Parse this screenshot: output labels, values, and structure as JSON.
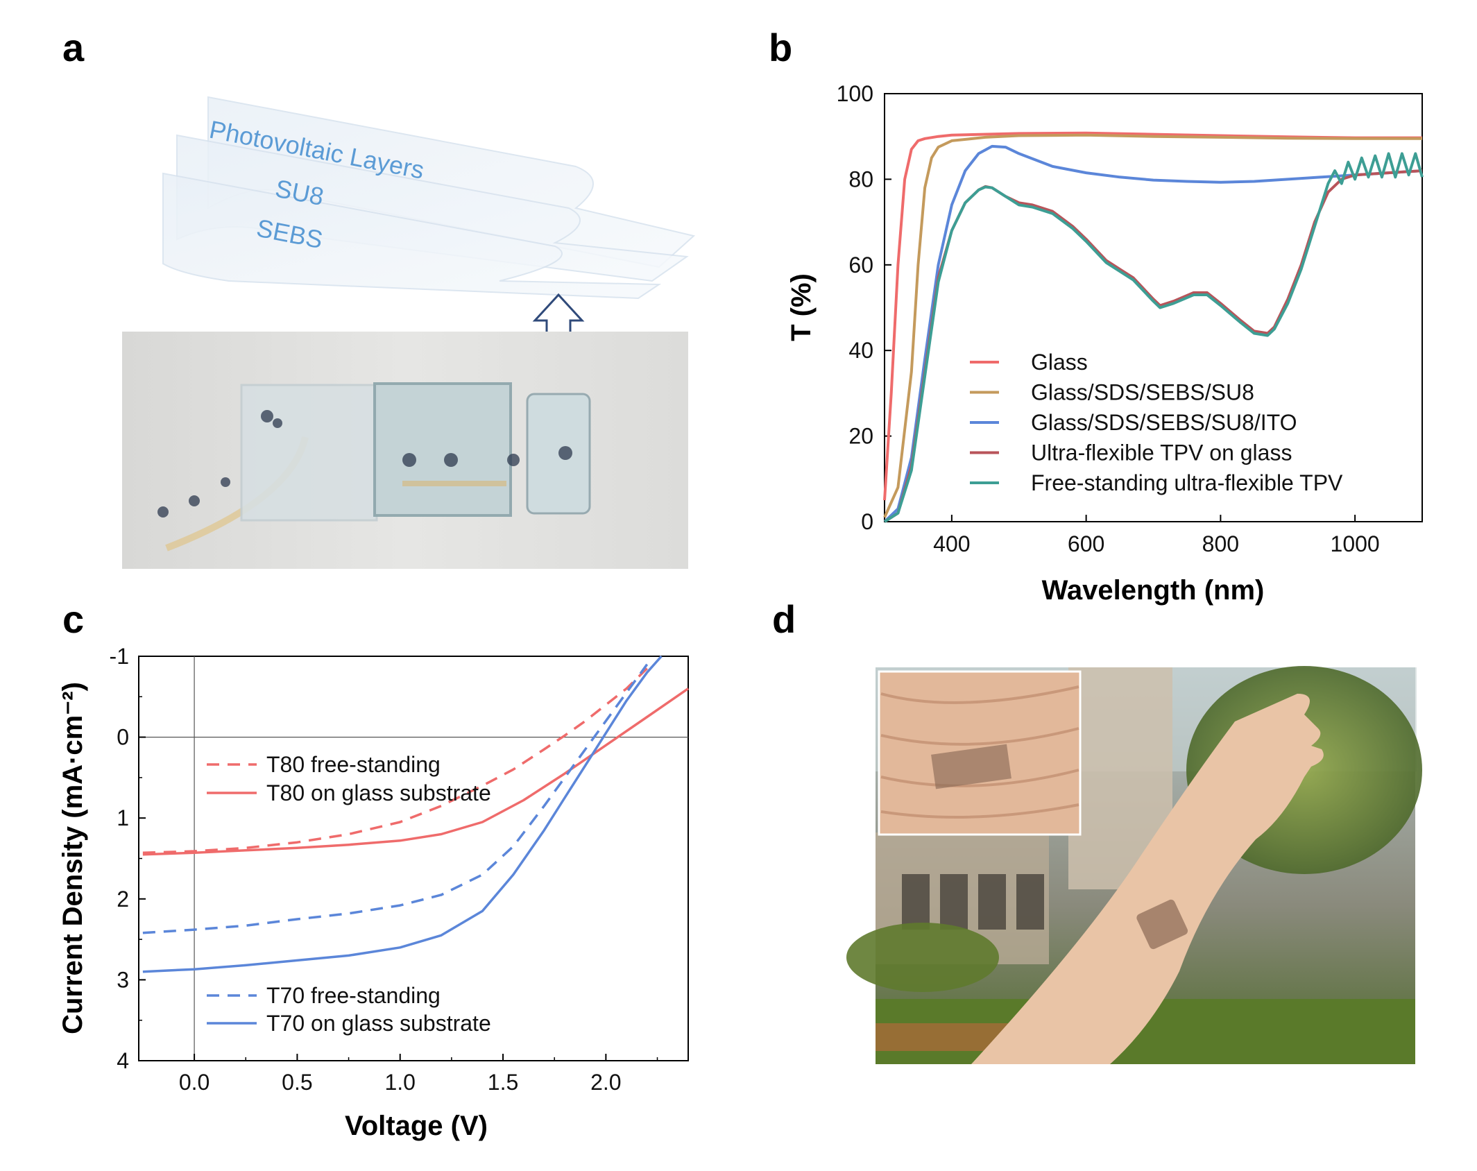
{
  "panels": {
    "a": {
      "label": "a",
      "layers": [
        "Photovoltaic Layers",
        "SU8",
        "SEBS"
      ]
    },
    "b": {
      "label": "b"
    },
    "c": {
      "label": "c"
    },
    "d": {
      "label": "d"
    }
  },
  "chart_data": [
    {
      "type": "line",
      "panel": "b",
      "xlabel": "Wavelength (nm)",
      "ylabel": "T (%)",
      "xlim": [
        300,
        1100
      ],
      "ylim": [
        0,
        100
      ],
      "xticks": [
        400,
        600,
        800,
        1000
      ],
      "yticks": [
        0,
        20,
        40,
        60,
        80,
        100
      ],
      "legend_position": "bottom-center",
      "series": [
        {
          "name": "Glass",
          "color": "#ef6b6b",
          "x": [
            300,
            310,
            320,
            330,
            340,
            350,
            360,
            380,
            400,
            500,
            600,
            700,
            800,
            900,
            1000,
            1100
          ],
          "y": [
            5,
            30,
            60,
            80,
            87,
            89,
            89.5,
            90,
            90.3,
            90.7,
            90.8,
            90.5,
            90.2,
            89.9,
            89.7,
            89.7
          ]
        },
        {
          "name": "Glass/SDS/SEBS/SU8",
          "color": "#c49a5c",
          "x": [
            300,
            320,
            340,
            350,
            360,
            370,
            380,
            400,
            450,
            500,
            600,
            700,
            800,
            900,
            1000,
            1100
          ],
          "y": [
            1,
            8,
            35,
            60,
            78,
            85,
            87.5,
            89,
            89.8,
            90.2,
            90.3,
            90,
            89.8,
            89.6,
            89.5,
            89.5
          ]
        },
        {
          "name": "Glass/SDS/SEBS/SU8/ITO",
          "color": "#5b86d9",
          "x": [
            300,
            320,
            340,
            360,
            380,
            400,
            420,
            440,
            460,
            480,
            500,
            550,
            600,
            650,
            700,
            750,
            800,
            850,
            900,
            950,
            1000,
            1050,
            1100
          ],
          "y": [
            0,
            3,
            15,
            38,
            60,
            74,
            82,
            86,
            87.7,
            87.5,
            86,
            83,
            81.5,
            80.5,
            79.8,
            79.5,
            79.3,
            79.5,
            80,
            80.5,
            81,
            81.5,
            82
          ]
        },
        {
          "name": "Ultra-flexible TPV on glass",
          "color": "#b8545a",
          "x": [
            300,
            320,
            340,
            360,
            380,
            400,
            420,
            440,
            450,
            460,
            480,
            500,
            520,
            550,
            580,
            600,
            630,
            650,
            670,
            700,
            710,
            730,
            760,
            780,
            800,
            830,
            850,
            870,
            880,
            900,
            920,
            940,
            960,
            980,
            1000,
            1050,
            1100
          ],
          "y": [
            0,
            2,
            13,
            35,
            57,
            68,
            74.5,
            77.5,
            78.3,
            78,
            76,
            74.5,
            74,
            72.5,
            69,
            66,
            61,
            59,
            57,
            52,
            50.5,
            51.5,
            53.5,
            53.5,
            51,
            47,
            44.5,
            44,
            45.5,
            52,
            60,
            70,
            77,
            80,
            81,
            81.5,
            82
          ]
        },
        {
          "name": "Free-standing ultra-flexible TPV",
          "color": "#3d9e94",
          "x": [
            300,
            320,
            340,
            360,
            380,
            400,
            420,
            440,
            450,
            460,
            480,
            500,
            520,
            550,
            580,
            600,
            630,
            650,
            670,
            700,
            710,
            730,
            760,
            780,
            800,
            830,
            850,
            870,
            880,
            900,
            920,
            940,
            950,
            960,
            970,
            980,
            990,
            1000,
            1010,
            1020,
            1030,
            1040,
            1050,
            1060,
            1070,
            1080,
            1090,
            1100
          ],
          "y": [
            0,
            2,
            12,
            34,
            56,
            68,
            74.5,
            77.5,
            78.2,
            78,
            76,
            74,
            73.5,
            72,
            68.5,
            65.5,
            60.5,
            58.5,
            56.5,
            51.5,
            50,
            51,
            53,
            53,
            50.5,
            46.5,
            44,
            43.5,
            45,
            51,
            59,
            69,
            74,
            79,
            82,
            79,
            84,
            80,
            85,
            80.5,
            85.5,
            80.5,
            86,
            80.5,
            86,
            81,
            86,
            80.5
          ]
        }
      ]
    },
    {
      "type": "line",
      "panel": "c",
      "xlabel": "Voltage (V)",
      "ylabel": "Current Density (mA·cm⁻²)",
      "xlim": [
        -0.27,
        2.4
      ],
      "ylim": [
        -1,
        4
      ],
      "y_inverted": true,
      "xticks": [
        "0.0",
        "0.5",
        "1.0",
        "1.5",
        "2.0"
      ],
      "yticks": [
        "-1",
        "0",
        "1",
        "2",
        "3",
        "4"
      ],
      "legend_position": "left",
      "series": [
        {
          "name": "T80 free-standing",
          "color": "#ef6b6b",
          "dash": true,
          "x": [
            -0.25,
            0,
            0.25,
            0.5,
            0.75,
            1.0,
            1.2,
            1.4,
            1.55,
            1.7,
            1.8,
            1.9,
            2.0,
            2.1,
            2.2
          ],
          "y": [
            1.43,
            1.41,
            1.37,
            1.3,
            1.2,
            1.05,
            0.85,
            0.6,
            0.4,
            0.15,
            -0.02,
            -0.2,
            -0.4,
            -0.6,
            -0.85
          ]
        },
        {
          "name": "T80 on glass substrate",
          "color": "#ef6b6b",
          "dash": false,
          "x": [
            -0.25,
            0,
            0.25,
            0.5,
            0.75,
            1.0,
            1.2,
            1.4,
            1.6,
            1.8,
            2.0,
            2.2,
            2.4
          ],
          "y": [
            1.45,
            1.43,
            1.4,
            1.37,
            1.33,
            1.28,
            1.2,
            1.05,
            0.78,
            0.45,
            0.1,
            -0.25,
            -0.6
          ]
        },
        {
          "name": "T70 free-standing",
          "color": "#5b86d9",
          "dash": true,
          "x": [
            -0.25,
            0,
            0.25,
            0.5,
            0.75,
            1.0,
            1.2,
            1.4,
            1.55,
            1.7,
            1.8,
            1.9,
            2.0,
            2.1,
            2.2
          ],
          "y": [
            2.42,
            2.38,
            2.33,
            2.25,
            2.18,
            2.08,
            1.95,
            1.7,
            1.35,
            0.85,
            0.5,
            0.15,
            -0.2,
            -0.55,
            -0.9
          ]
        },
        {
          "name": "T70 on glass substrate",
          "color": "#5b86d9",
          "dash": false,
          "x": [
            -0.25,
            0,
            0.25,
            0.5,
            0.75,
            1.0,
            1.2,
            1.4,
            1.55,
            1.7,
            1.8,
            1.9,
            2.0,
            2.1,
            2.2,
            2.27
          ],
          "y": [
            2.9,
            2.87,
            2.82,
            2.76,
            2.7,
            2.6,
            2.45,
            2.15,
            1.7,
            1.15,
            0.75,
            0.35,
            -0.05,
            -0.45,
            -0.8,
            -1.0
          ]
        }
      ]
    }
  ]
}
